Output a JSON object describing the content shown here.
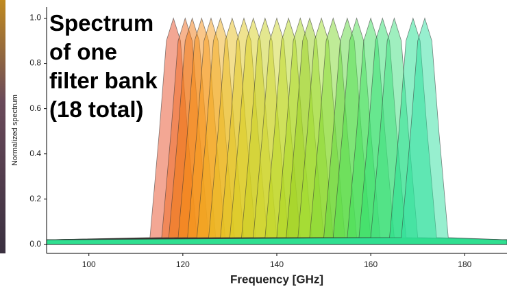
{
  "chart_data": {
    "type": "area",
    "title_lines": [
      "Spectrum",
      "of one",
      "filter bank",
      "(18 total)"
    ],
    "xlabel": "Frequency [GHz]",
    "ylabel": "Normalized spectrum",
    "xlim": [
      91,
      189
    ],
    "ylim": [
      -0.04,
      1.05
    ],
    "xticks": [
      100,
      120,
      140,
      160,
      180
    ],
    "yticks": [
      {
        "value": 0,
        "label": "0.0"
      },
      {
        "value": 0.2,
        "label": "0.2"
      },
      {
        "value": 0.4,
        "label": "0.4"
      },
      {
        "value": 0.6,
        "label": "0.6"
      },
      {
        "value": 0.8,
        "label": "0.8"
      },
      {
        "value": 1,
        "label": "1.0"
      }
    ],
    "series": [
      {
        "color": "#e8502a",
        "x": [
          91,
          113,
          115,
          116.5,
          118,
          119.5,
          121,
          123,
          189
        ],
        "values": [
          0.02,
          0.03,
          0.5,
          0.9,
          1,
          0.9,
          0.5,
          0.03,
          0.02
        ]
      },
      {
        "color": "#f06a1e",
        "x": [
          91,
          115.5,
          117.5,
          119,
          120.5,
          122,
          123.5,
          125.5,
          189
        ],
        "values": [
          0.02,
          0.03,
          0.5,
          0.9,
          1,
          0.9,
          0.5,
          0.03,
          0.02
        ]
      },
      {
        "color": "#f07a10",
        "x": [
          91,
          117,
          119,
          120.5,
          122,
          123.5,
          125,
          127,
          189
        ],
        "values": [
          0.02,
          0.03,
          0.5,
          0.9,
          1,
          0.9,
          0.5,
          0.03,
          0.02
        ]
      },
      {
        "color": "#f59015",
        "x": [
          91,
          119,
          121,
          122.5,
          124,
          125.5,
          127,
          129,
          189
        ],
        "values": [
          0.02,
          0.03,
          0.5,
          0.9,
          1,
          0.9,
          0.5,
          0.03,
          0.02
        ]
      },
      {
        "color": "#f5a020",
        "x": [
          91,
          121,
          123,
          124.5,
          126,
          127.5,
          129,
          131,
          189
        ],
        "values": [
          0.02,
          0.03,
          0.5,
          0.9,
          1,
          0.9,
          0.5,
          0.03,
          0.02
        ]
      },
      {
        "color": "#f0b020",
        "x": [
          91,
          123,
          125,
          126.5,
          128,
          129.5,
          131,
          133,
          189
        ],
        "values": [
          0.02,
          0.03,
          0.5,
          0.9,
          1,
          0.9,
          0.5,
          0.03,
          0.02
        ]
      },
      {
        "color": "#e8c020",
        "x": [
          91,
          125.5,
          127.5,
          129,
          130.5,
          132,
          133.5,
          135.5,
          189
        ],
        "values": [
          0.02,
          0.03,
          0.5,
          0.9,
          1,
          0.9,
          0.5,
          0.03,
          0.02
        ]
      },
      {
        "color": "#e0c820",
        "x": [
          91,
          128,
          130,
          131.5,
          133,
          134.5,
          136,
          138,
          189
        ],
        "values": [
          0.02,
          0.03,
          0.5,
          0.9,
          1,
          0.9,
          0.5,
          0.03,
          0.02
        ]
      },
      {
        "color": "#d8d020",
        "x": [
          91,
          130,
          132,
          133.5,
          135,
          136.5,
          138,
          140,
          189
        ],
        "values": [
          0.02,
          0.03,
          0.5,
          0.9,
          1,
          0.9,
          0.5,
          0.03,
          0.02
        ]
      },
      {
        "color": "#c8d020",
        "x": [
          91,
          132.5,
          134.5,
          136,
          137.5,
          139,
          140.5,
          142.5,
          189
        ],
        "values": [
          0.02,
          0.03,
          0.5,
          0.9,
          1,
          0.9,
          0.5,
          0.03,
          0.02
        ]
      },
      {
        "color": "#d0d830",
        "x": [
          91,
          135,
          137,
          138.5,
          140,
          141.5,
          143,
          145,
          189
        ],
        "values": [
          0.02,
          0.03,
          0.5,
          0.9,
          1,
          0.9,
          0.5,
          0.03,
          0.02
        ]
      },
      {
        "color": "#b8d820",
        "x": [
          91,
          137.5,
          139.5,
          141,
          142.5,
          144,
          145.5,
          147.5,
          189
        ],
        "values": [
          0.02,
          0.03,
          0.5,
          0.9,
          1,
          0.9,
          0.5,
          0.03,
          0.02
        ]
      },
      {
        "color": "#a8d820",
        "x": [
          91,
          140,
          142,
          143.5,
          145,
          146.5,
          148,
          150,
          189
        ],
        "values": [
          0.02,
          0.03,
          0.5,
          0.9,
          1,
          0.9,
          0.5,
          0.03,
          0.02
        ]
      },
      {
        "color": "#98d020",
        "x": [
          91,
          142,
          144,
          145.5,
          147,
          148.5,
          150,
          152,
          189
        ],
        "values": [
          0.02,
          0.03,
          0.5,
          0.9,
          1,
          0.9,
          0.5,
          0.03,
          0.02
        ]
      },
      {
        "color": "#a0e030",
        "x": [
          91,
          144.5,
          146.5,
          148,
          149.5,
          151,
          152.5,
          154.5,
          189
        ],
        "values": [
          0.02,
          0.03,
          0.5,
          0.9,
          1,
          0.9,
          0.5,
          0.03,
          0.02
        ]
      },
      {
        "color": "#80d830",
        "x": [
          91,
          147,
          149,
          150.5,
          152,
          153.5,
          155,
          157,
          189
        ],
        "values": [
          0.02,
          0.03,
          0.5,
          0.9,
          1,
          0.9,
          0.5,
          0.03,
          0.02
        ]
      },
      {
        "color": "#60d840",
        "x": [
          91,
          150,
          152,
          153.5,
          155,
          156.5,
          158,
          160,
          189
        ],
        "values": [
          0.02,
          0.03,
          0.5,
          0.9,
          1,
          0.9,
          0.5,
          0.03,
          0.02
        ]
      },
      {
        "color": "#50e050",
        "x": [
          91,
          152,
          154,
          155.5,
          157,
          158.5,
          160,
          162,
          189
        ],
        "values": [
          0.02,
          0.03,
          0.5,
          0.9,
          1,
          0.9,
          0.5,
          0.03,
          0.02
        ]
      },
      {
        "color": "#40e060",
        "x": [
          91,
          155,
          157,
          158.5,
          160,
          161.5,
          163,
          165,
          189
        ],
        "values": [
          0.02,
          0.03,
          0.5,
          0.9,
          1,
          0.9,
          0.5,
          0.03,
          0.02
        ]
      },
      {
        "color": "#30e070",
        "x": [
          91,
          157.5,
          159.5,
          161,
          162.5,
          164,
          165.5,
          167.5,
          189
        ],
        "values": [
          0.02,
          0.03,
          0.5,
          0.9,
          1,
          0.9,
          0.5,
          0.03,
          0.02
        ]
      },
      {
        "color": "#40e080",
        "x": [
          91,
          160,
          162,
          163.5,
          165,
          166.5,
          168,
          170,
          189
        ],
        "values": [
          0.02,
          0.03,
          0.5,
          0.9,
          1,
          0.9,
          0.5,
          0.03,
          0.02
        ]
      },
      {
        "color": "#20e090",
        "x": [
          91,
          164,
          166,
          167.5,
          169,
          170.5,
          172,
          174,
          189
        ],
        "values": [
          0.02,
          0.03,
          0.5,
          0.9,
          1,
          0.9,
          0.5,
          0.03,
          0.02
        ]
      },
      {
        "color": "#30e0a0",
        "x": [
          91,
          166.5,
          168.5,
          170,
          171.5,
          173,
          174.5,
          176.5,
          189
        ],
        "values": [
          0.02,
          0.03,
          0.5,
          0.9,
          1,
          0.9,
          0.5,
          0.03,
          0.02
        ]
      }
    ]
  }
}
